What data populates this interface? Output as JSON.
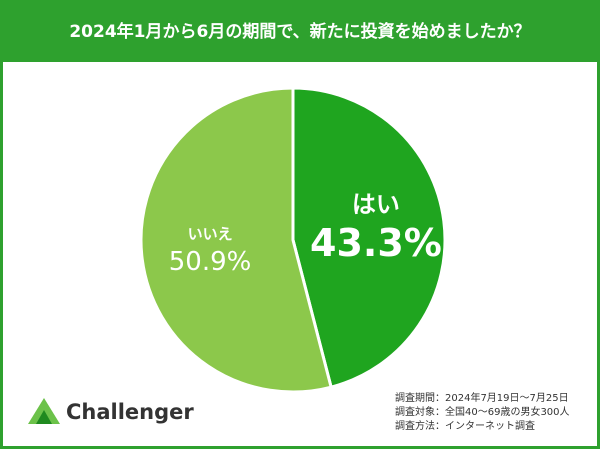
{
  "chart_data": {
    "type": "pie",
    "title": "2024年1月から6月の期間で、新たに投資を始めましたか？",
    "categories": [
      "はい",
      "いいえ"
    ],
    "values": [
      43.3,
      50.9
    ],
    "value_labels": [
      "43.3%",
      "50.9%"
    ],
    "colors": [
      "#1fa51f",
      "#8cc84b"
    ]
  },
  "logo": "Challenger",
  "notes": [
    "調査期間：2024年7月19日〜7月25日",
    "調査対象：全国40〜69歳の男女300人",
    "調査方法：インターネット調査"
  ]
}
